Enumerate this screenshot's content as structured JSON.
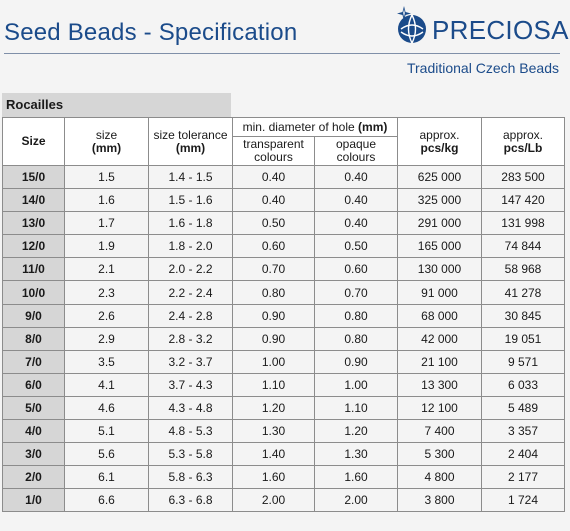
{
  "header": {
    "title": "Seed Beads - Specification",
    "brand": "PRECIOSA",
    "tagline": "Traditional Czech Beads",
    "brand_color": "#1b4b8a"
  },
  "section_label": "Rocailles",
  "columns": {
    "size": "Size",
    "size_mm": "size",
    "size_mm_unit": "(mm)",
    "tolerance": "size tolerance",
    "tolerance_unit": "(mm)",
    "hole_group": "min. diameter of hole",
    "hole_unit": "(mm)",
    "transparent": "transparent",
    "transparent_2": "colours",
    "opaque": "opaque",
    "opaque_2": "colours",
    "pcs_kg": "approx.",
    "pcs_kg_unit": "pcs/kg",
    "pcs_lb": "approx.",
    "pcs_lb_unit": "pcs/Lb"
  },
  "rows": [
    [
      "15/0",
      "1.5",
      "1.4 - 1.5",
      "0.40",
      "0.40",
      "625 000",
      "283 500"
    ],
    [
      "14/0",
      "1.6",
      "1.5 - 1.6",
      "0.40",
      "0.40",
      "325 000",
      "147 420"
    ],
    [
      "13/0",
      "1.7",
      "1.6 - 1.8",
      "0.50",
      "0.40",
      "291 000",
      "131 998"
    ],
    [
      "12/0",
      "1.9",
      "1.8 - 2.0",
      "0.60",
      "0.50",
      "165 000",
      "74 844"
    ],
    [
      "11/0",
      "2.1",
      "2.0 - 2.2",
      "0.70",
      "0.60",
      "130 000",
      "58 968"
    ],
    [
      "10/0",
      "2.3",
      "2.2 - 2.4",
      "0.80",
      "0.70",
      "91 000",
      "41 278"
    ],
    [
      "9/0",
      "2.6",
      "2.4 - 2.8",
      "0.90",
      "0.80",
      "68 000",
      "30 845"
    ],
    [
      "8/0",
      "2.9",
      "2.8 - 3.2",
      "0.90",
      "0.80",
      "42 000",
      "19 051"
    ],
    [
      "7/0",
      "3.5",
      "3.2 - 3.7",
      "1.00",
      "0.90",
      "21 100",
      "9 571"
    ],
    [
      "6/0",
      "4.1",
      "3.7 - 4.3",
      "1.10",
      "1.00",
      "13 300",
      "6 033"
    ],
    [
      "5/0",
      "4.6",
      "4.3 - 4.8",
      "1.20",
      "1.10",
      "12 100",
      "5 489"
    ],
    [
      "4/0",
      "5.1",
      "4.8 - 5.3",
      "1.30",
      "1.20",
      "7 400",
      "3 357"
    ],
    [
      "3/0",
      "5.6",
      "5.3 - 5.8",
      "1.40",
      "1.30",
      "5 300",
      "2 404"
    ],
    [
      "2/0",
      "6.1",
      "5.8 - 6.3",
      "1.60",
      "1.60",
      "4 800",
      "2 177"
    ],
    [
      "1/0",
      "6.6",
      "6.3 - 6.8",
      "2.00",
      "2.00",
      "3 800",
      "1 724"
    ]
  ]
}
